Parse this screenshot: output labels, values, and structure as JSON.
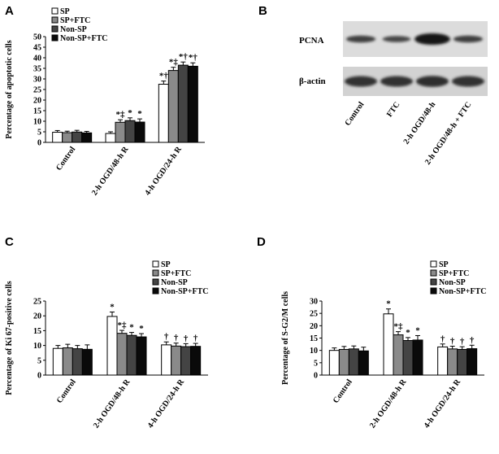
{
  "panels": {
    "A": "A",
    "B": "B",
    "C": "C",
    "D": "D"
  },
  "series_colors": [
    "#ffffff",
    "#8a8a8a",
    "#444444",
    "#0a0a0a"
  ],
  "chart_data": [
    {
      "id": "A",
      "type": "bar",
      "ylabel": "Percentage of apoptotic cells",
      "xlabel": "",
      "ylim": [
        0,
        50
      ],
      "yticks": [
        0,
        5,
        10,
        15,
        20,
        25,
        30,
        35,
        40,
        45,
        50
      ],
      "categories": [
        "Control",
        "2-h OGD/48-h R",
        "4-h OGD/24-h R"
      ],
      "series": [
        {
          "name": "SP",
          "values": [
            4.8,
            4.2,
            27.5
          ],
          "errors": [
            0.8,
            0.8,
            1.5
          ]
        },
        {
          "name": "SP+FTC",
          "values": [
            4.6,
            9.5,
            34.0
          ],
          "errors": [
            0.7,
            1.2,
            1.5
          ]
        },
        {
          "name": "Non-SP",
          "values": [
            4.9,
            10.3,
            36.5
          ],
          "errors": [
            0.8,
            1.3,
            1.5
          ]
        },
        {
          "name": "Non-SP+FTC",
          "values": [
            4.5,
            9.6,
            36.0
          ],
          "errors": [
            0.7,
            1.5,
            1.6
          ]
        }
      ],
      "annotations": [
        {
          "category": 1,
          "series": 1,
          "text": "*‡"
        },
        {
          "category": 1,
          "series": 2,
          "text": "*"
        },
        {
          "category": 1,
          "series": 3,
          "text": "*"
        },
        {
          "category": 2,
          "series": 0,
          "text": "*†"
        },
        {
          "category": 2,
          "series": 1,
          "text": "*‡"
        },
        {
          "category": 2,
          "series": 2,
          "text": "*†"
        },
        {
          "category": 2,
          "series": 3,
          "text": "*†"
        }
      ],
      "legend_position": "top-left"
    },
    {
      "id": "C",
      "type": "bar",
      "ylabel": "Percentage of Ki 67-positive cells",
      "xlabel": "",
      "ylim": [
        0,
        25
      ],
      "yticks": [
        0,
        5,
        10,
        15,
        20,
        25
      ],
      "categories": [
        "Control",
        "2-h OGD/48-h R",
        "4-h OGD/24-h R"
      ],
      "series": [
        {
          "name": "SP",
          "values": [
            9.0,
            19.8,
            10.2
          ],
          "errors": [
            1.0,
            1.5,
            1.0
          ]
        },
        {
          "name": "SP+FTC",
          "values": [
            9.2,
            14.1,
            9.8
          ],
          "errors": [
            1.2,
            1.0,
            1.0
          ]
        },
        {
          "name": "Non-SP",
          "values": [
            8.9,
            13.4,
            9.6
          ],
          "errors": [
            1.1,
            1.0,
            1.0
          ]
        },
        {
          "name": "Non-SP+FTC",
          "values": [
            8.7,
            12.9,
            9.7
          ],
          "errors": [
            1.5,
            1.1,
            1.0
          ]
        }
      ],
      "annotations": [
        {
          "category": 1,
          "series": 0,
          "text": "*"
        },
        {
          "category": 1,
          "series": 1,
          "text": "*‡"
        },
        {
          "category": 1,
          "series": 2,
          "text": "*"
        },
        {
          "category": 1,
          "series": 3,
          "text": "*"
        },
        {
          "category": 2,
          "series": 0,
          "text": "†"
        },
        {
          "category": 2,
          "series": 1,
          "text": "†"
        },
        {
          "category": 2,
          "series": 2,
          "text": "†"
        },
        {
          "category": 2,
          "series": 3,
          "text": "†"
        }
      ],
      "legend_position": "top-right"
    },
    {
      "id": "D",
      "type": "bar",
      "ylabel": "Percentage of S-G2/M cells",
      "xlabel": "",
      "ylim": [
        0,
        30
      ],
      "yticks": [
        0,
        5,
        10,
        15,
        20,
        25,
        30
      ],
      "categories": [
        "Control",
        "2-h OGD/48-h R",
        "4-h OGD/24-h R"
      ],
      "series": [
        {
          "name": "SP",
          "values": [
            10.0,
            24.8,
            11.4
          ],
          "errors": [
            1.0,
            2.0,
            1.2
          ]
        },
        {
          "name": "SP+FTC",
          "values": [
            10.4,
            16.3,
            10.6
          ],
          "errors": [
            1.2,
            1.3,
            1.1
          ]
        },
        {
          "name": "Non-SP",
          "values": [
            10.6,
            14.0,
            10.4
          ],
          "errors": [
            1.2,
            1.2,
            1.1
          ]
        },
        {
          "name": "Non-SP+FTC",
          "values": [
            9.8,
            14.2,
            10.7
          ],
          "errors": [
            1.5,
            1.8,
            1.4
          ]
        }
      ],
      "annotations": [
        {
          "category": 1,
          "series": 0,
          "text": "*"
        },
        {
          "category": 1,
          "series": 1,
          "text": "*‡"
        },
        {
          "category": 1,
          "series": 2,
          "text": "*"
        },
        {
          "category": 1,
          "series": 3,
          "text": "*"
        },
        {
          "category": 2,
          "series": 0,
          "text": "†"
        },
        {
          "category": 2,
          "series": 1,
          "text": "†"
        },
        {
          "category": 2,
          "series": 2,
          "text": "†"
        },
        {
          "category": 2,
          "series": 3,
          "text": "†"
        }
      ],
      "legend_position": "top-right"
    }
  ],
  "western_blot": {
    "rows": [
      "PCNA",
      "β-actin"
    ],
    "lanes": [
      "Control",
      "FTC",
      "2-h OGD/48-h",
      "2-h OGD/48-h + FTC"
    ],
    "pcna_intensity": [
      0.45,
      0.35,
      1.0,
      0.45
    ],
    "actin_intensity": [
      0.85,
      0.85,
      0.9,
      0.85
    ]
  }
}
